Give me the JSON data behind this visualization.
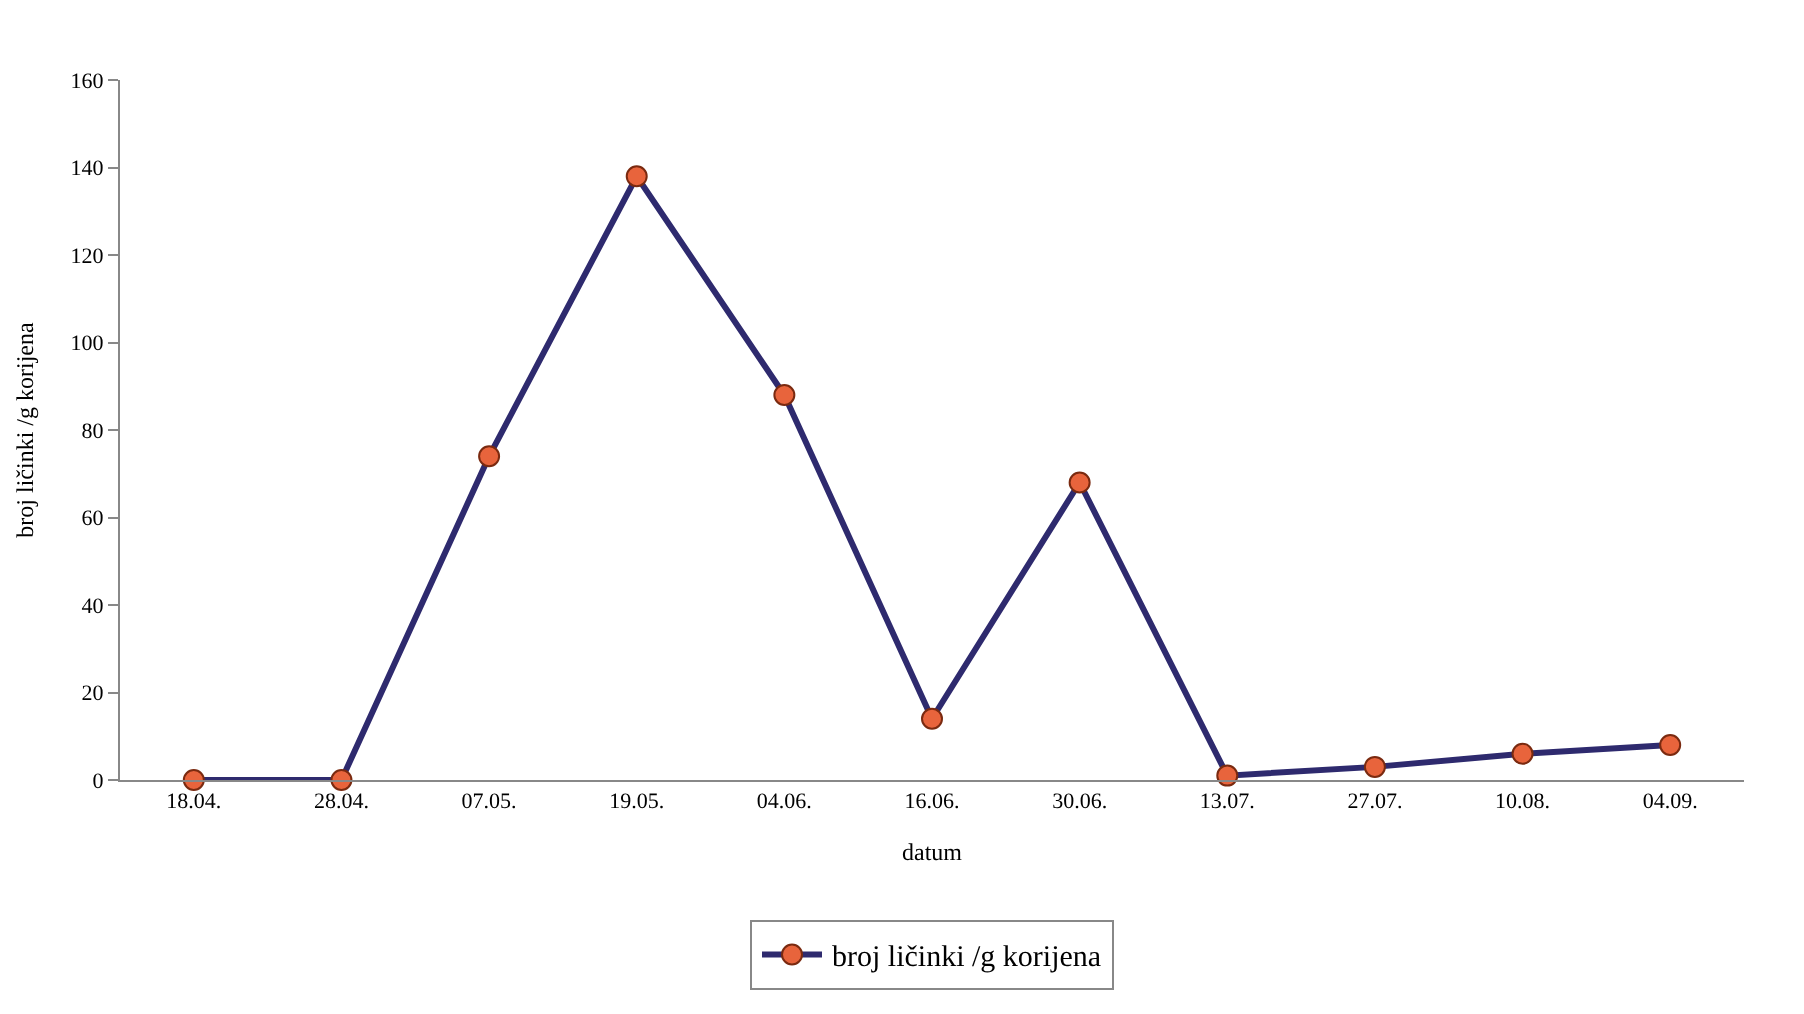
{
  "chart_data": {
    "type": "line",
    "xlabel": "datum",
    "ylabel": "broj ličinki /g korijena",
    "categories": [
      "18.04.",
      "28.04.",
      "07.05.",
      "19.05.",
      "04.06.",
      "16.06.",
      "30.06.",
      "13.07.",
      "27.07.",
      "10.08.",
      "04.09."
    ],
    "series": [
      {
        "name": "broj ličinki /g korijena",
        "color": "#2e2a6e",
        "colors": [
          "#e8643c",
          "#e8643c",
          "#e8643c",
          "#e8643c",
          "#e8643c",
          "#e8643c",
          "#e8643c",
          "#e8643c",
          "#e8643c",
          "#e8643c",
          "#e8643c"
        ],
        "values": [
          0,
          0,
          74,
          138,
          88,
          14,
          68,
          1,
          3,
          6,
          8
        ]
      }
    ],
    "ylim": [
      0,
      160
    ],
    "yticks": [
      0,
      20,
      40,
      60,
      80,
      100,
      120,
      140,
      160
    ],
    "legend": "bottom",
    "marker": "circle",
    "line_style": "solid"
  }
}
